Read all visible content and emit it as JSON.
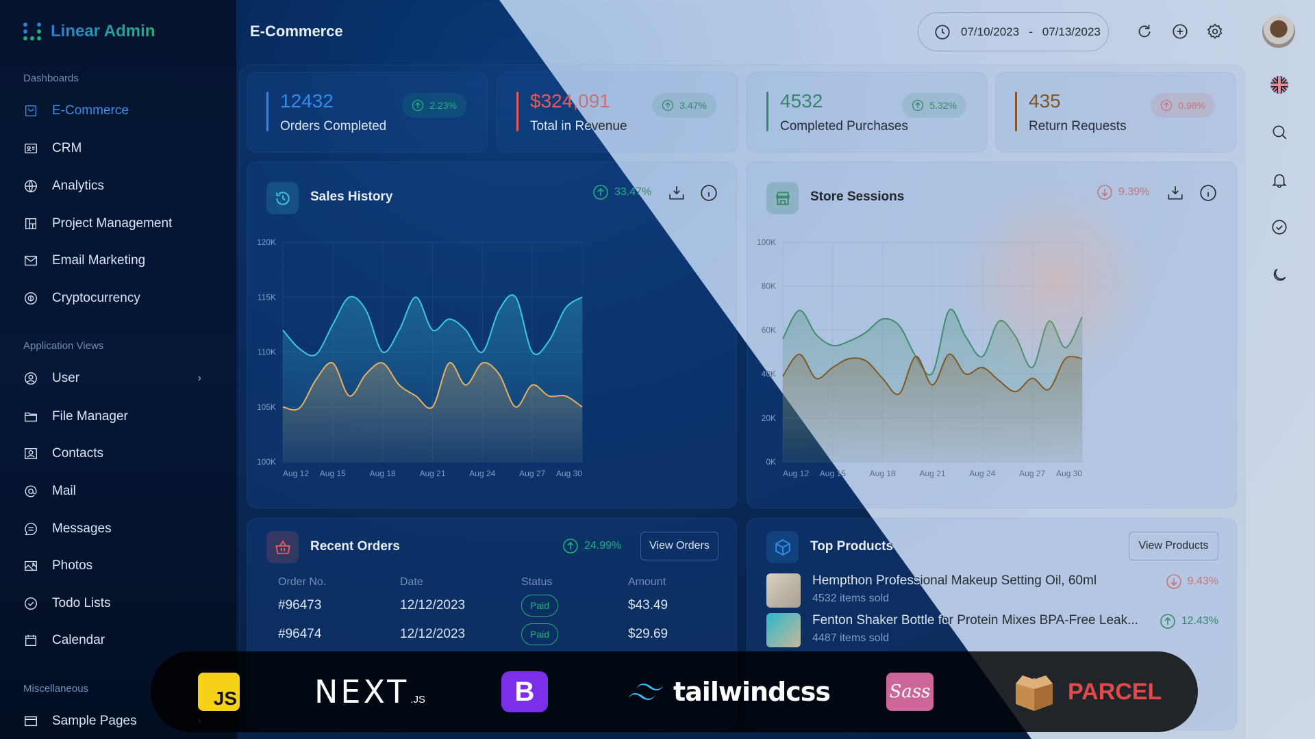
{
  "app": {
    "name": "Linear Admin"
  },
  "header": {
    "title": "E-Commerce",
    "date_range": {
      "start": "07/10/2023",
      "separator": "-",
      "end": "07/13/2023"
    }
  },
  "sidebar": {
    "sections": [
      {
        "label": "Dashboards",
        "items": [
          {
            "label": "E-Commerce",
            "icon": "shopping-bag-icon",
            "active": true
          },
          {
            "label": "CRM",
            "icon": "id-card-icon"
          },
          {
            "label": "Analytics",
            "icon": "globe-icon"
          },
          {
            "label": "Project Management",
            "icon": "layout-icon"
          },
          {
            "label": "Email Marketing",
            "icon": "envelope-icon"
          },
          {
            "label": "Cryptocurrency",
            "icon": "coin-icon"
          }
        ]
      },
      {
        "label": "Application Views",
        "items": [
          {
            "label": "User",
            "icon": "user-circle-icon",
            "has_children": true
          },
          {
            "label": "File Manager",
            "icon": "folder-icon"
          },
          {
            "label": "Contacts",
            "icon": "contact-card-icon"
          },
          {
            "label": "Mail",
            "icon": "at-sign-icon"
          },
          {
            "label": "Messages",
            "icon": "chat-bubble-icon"
          },
          {
            "label": "Photos",
            "icon": "image-icon"
          },
          {
            "label": "Todo Lists",
            "icon": "check-circle-icon"
          },
          {
            "label": "Calendar",
            "icon": "calendar-icon"
          }
        ]
      },
      {
        "label": "Miscellaneous",
        "items": [
          {
            "label": "Sample Pages",
            "icon": "window-icon",
            "has_children": true
          }
        ]
      }
    ]
  },
  "stats": [
    {
      "value": "12432",
      "label": "Orders Completed",
      "change": "2.23%",
      "trend": "up",
      "color": "#2f8be8"
    },
    {
      "value": "$324,091",
      "label": "Total in Revenue",
      "change": "3.47%",
      "trend": "up",
      "color": "#e85a5a"
    },
    {
      "value": "4532",
      "label": "Completed Purchases",
      "change": "5.32%",
      "trend": "up",
      "color": "#22b07d"
    },
    {
      "value": "435",
      "label": "Return Requests",
      "change": "0.98%",
      "trend": "up",
      "color": "#f0a24a"
    }
  ],
  "sales_history": {
    "title": "Sales History",
    "change": "33.47%",
    "trend": "up"
  },
  "store_sessions": {
    "title": "Store Sessions",
    "change": "9.39%",
    "trend": "down"
  },
  "recent_orders": {
    "title": "Recent Orders",
    "change": "24.99%",
    "trend": "up",
    "button": "View Orders",
    "columns": [
      "Order No.",
      "Date",
      "Status",
      "Amount"
    ],
    "rows": [
      {
        "order": "#96473",
        "date": "12/12/2023",
        "status": "Paid",
        "amount": "$43.49"
      },
      {
        "order": "#96474",
        "date": "12/12/2023",
        "status": "Paid",
        "amount": "$29.69"
      }
    ]
  },
  "top_products": {
    "title": "Top Products",
    "button": "View Products",
    "items": [
      {
        "name": "Hempthon Professional Makeup Setting Oil, 60ml",
        "sub": "4532 items sold",
        "change": "9.43%",
        "trend": "down"
      },
      {
        "name": "Fenton Shaker Bottle for Protein Mixes BPA-Free Leak...",
        "sub": "4487 items sold",
        "change": "12.43%",
        "trend": "up"
      }
    ]
  },
  "tech_logos": {
    "js": "JS",
    "next": "NEXT",
    "next_suffix": ".JS",
    "bootstrap": "B",
    "tailwind": "tailwindcss",
    "sass": "Sass",
    "parcel": "PARCEL"
  },
  "colors": {
    "accent_blue": "#2f8be8",
    "green": "#22b07d",
    "red": "#e85a5a",
    "orange": "#f0a24a",
    "cyan": "#3cc8e8"
  },
  "chart_data": [
    {
      "type": "area",
      "title": "Sales History",
      "categories": [
        "Aug 12",
        "Aug 13",
        "Aug 14",
        "Aug 15",
        "Aug 16",
        "Aug 17",
        "Aug 18",
        "Aug 19",
        "Aug 20",
        "Aug 21",
        "Aug 22",
        "Aug 23",
        "Aug 24",
        "Aug 25",
        "Aug 26",
        "Aug 27",
        "Aug 28",
        "Aug 29",
        "Aug 30"
      ],
      "x_ticks": [
        "Aug 12",
        "Aug 15",
        "Aug 18",
        "Aug 21",
        "Aug 24",
        "Aug 27",
        "Aug 30"
      ],
      "y_ticks": [
        "100K",
        "105K",
        "110K",
        "115K",
        "120K"
      ],
      "ylim": [
        100000,
        120000
      ],
      "grid": true,
      "series": [
        {
          "color": "#3cc8e8",
          "values": [
            112000,
            110300,
            109800,
            112500,
            115000,
            113800,
            110000,
            112000,
            115000,
            112000,
            113000,
            112000,
            110000,
            113800,
            115000,
            110000,
            111000,
            114000,
            115000
          ]
        },
        {
          "color": "#e8b060",
          "values": [
            105000,
            104900,
            107500,
            109000,
            106000,
            108000,
            109000,
            107000,
            106000,
            105000,
            109000,
            107000,
            109000,
            108000,
            105000,
            107000,
            106000,
            106000,
            105000
          ]
        }
      ]
    },
    {
      "type": "area",
      "title": "Store Sessions",
      "categories": [
        "Aug 12",
        "Aug 13",
        "Aug 14",
        "Aug 15",
        "Aug 16",
        "Aug 17",
        "Aug 18",
        "Aug 19",
        "Aug 20",
        "Aug 21",
        "Aug 22",
        "Aug 23",
        "Aug 24",
        "Aug 25",
        "Aug 26",
        "Aug 27",
        "Aug 28",
        "Aug 29",
        "Aug 30"
      ],
      "x_ticks": [
        "Aug 12",
        "Aug 15",
        "Aug 18",
        "Aug 21",
        "Aug 24",
        "Aug 27",
        "Aug 30"
      ],
      "y_ticks": [
        "0K",
        "20K",
        "40K",
        "60K",
        "80K",
        "100K"
      ],
      "ylim": [
        0,
        100000
      ],
      "grid": true,
      "series": [
        {
          "color": "#1fa870",
          "values": [
            56000,
            69000,
            58000,
            53000,
            55000,
            59000,
            65000,
            62000,
            48000,
            40500,
            69000,
            57000,
            48000,
            64000,
            57000,
            43000,
            64000,
            52000,
            66000
          ]
        },
        {
          "color": "#e8a448",
          "values": [
            39000,
            49000,
            38000,
            43000,
            47000,
            46000,
            38000,
            31000,
            48000,
            35000,
            49000,
            40000,
            43000,
            37000,
            32000,
            38000,
            33000,
            47000,
            47000
          ]
        }
      ]
    }
  ]
}
